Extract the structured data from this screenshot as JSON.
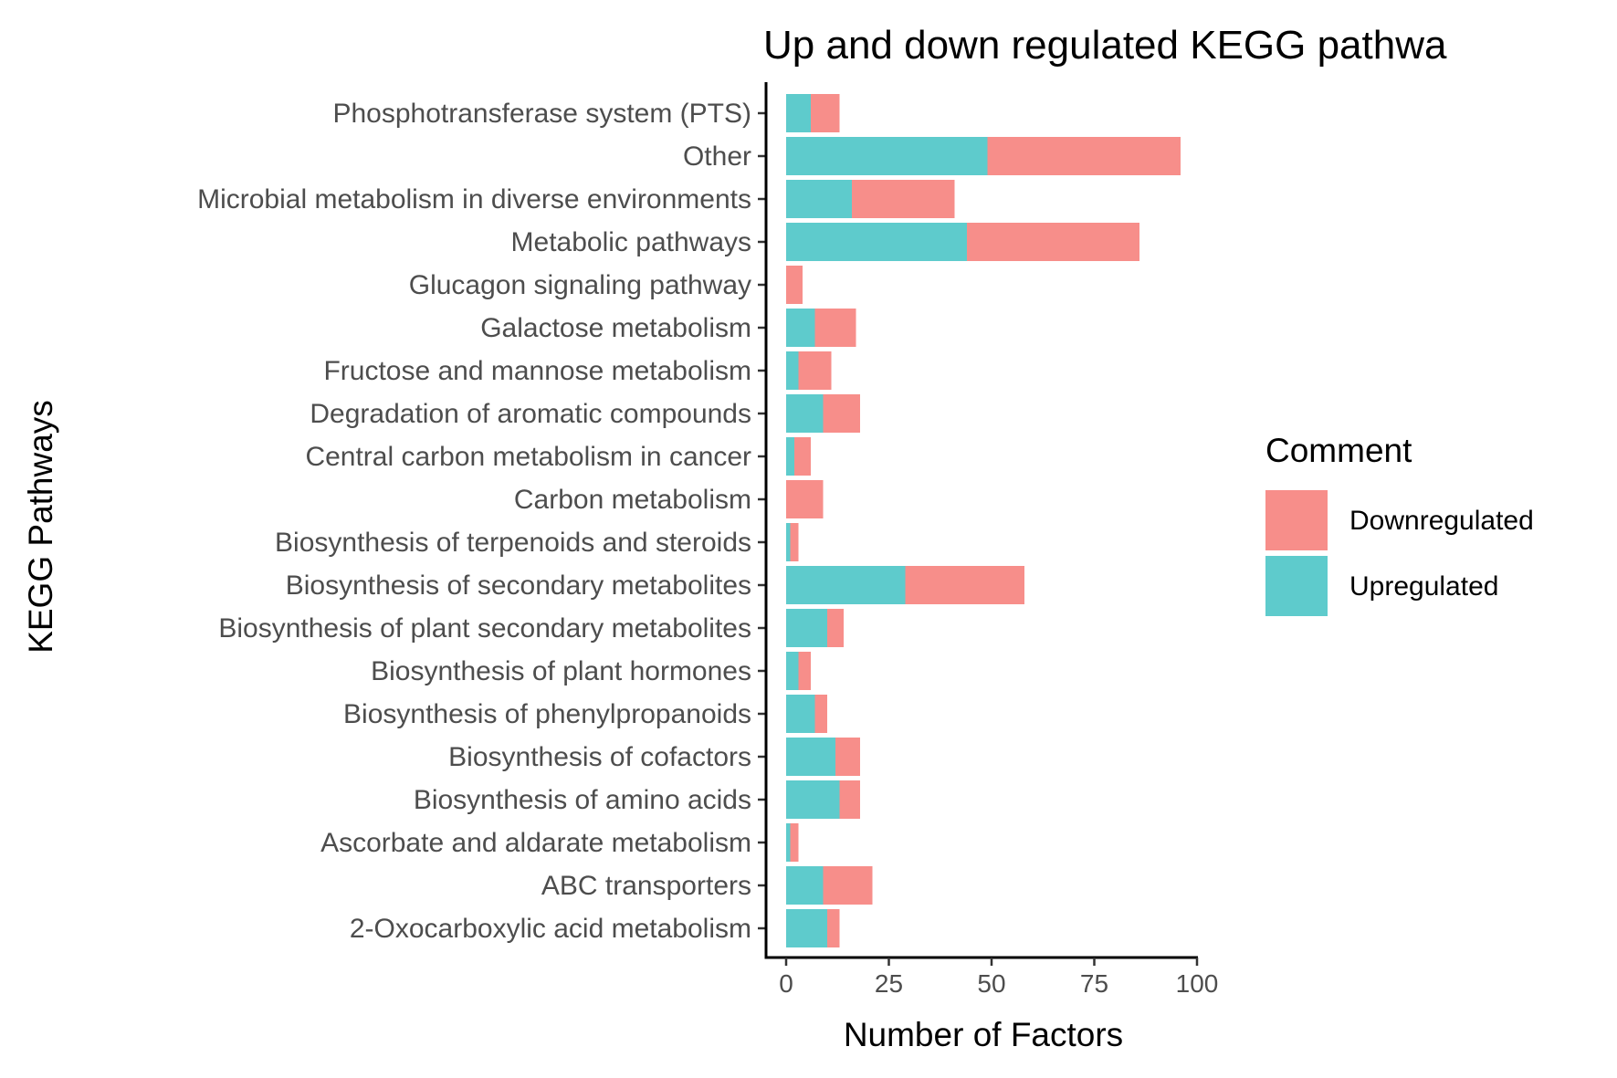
{
  "chart_data": {
    "type": "bar",
    "orientation": "horizontal",
    "stacked": true,
    "title": "Up and down regulated KEGG pathwa",
    "xlabel": "Number of Factors",
    "ylabel": "KEGG Pathways",
    "xlim": [
      0,
      100
    ],
    "xticks": [
      "0",
      "25",
      "50",
      "75",
      "100"
    ],
    "xtick_values": [
      0,
      25,
      50,
      75,
      100
    ],
    "grid": false,
    "legend_position": "right",
    "legend_title": "Comment",
    "categories": [
      "Phosphotransferase system (PTS)",
      "Other",
      "Microbial metabolism in diverse environments",
      "Metabolic pathways",
      "Glucagon signaling pathway",
      "Galactose metabolism",
      "Fructose and mannose metabolism",
      "Degradation of aromatic compounds",
      "Central carbon metabolism in cancer",
      "Carbon metabolism",
      "Biosynthesis of terpenoids and steroids",
      "Biosynthesis of secondary metabolites",
      "Biosynthesis of plant secondary metabolites",
      "Biosynthesis of plant hormones",
      "Biosynthesis of phenylpropanoids",
      "Biosynthesis of cofactors",
      "Biosynthesis of amino acids",
      "Ascorbate and aldarate metabolism",
      "ABC transporters",
      "2-Oxocarboxylic acid metabolism"
    ],
    "series": [
      {
        "name": "Upregulated",
        "color": "#5ECBCC",
        "values": [
          6,
          49,
          16,
          44,
          0,
          7,
          3,
          9,
          2,
          0,
          1,
          29,
          10,
          3,
          7,
          12,
          13,
          1,
          9,
          10
        ]
      },
      {
        "name": "Downregulated",
        "color": "#F78E8A",
        "values": [
          7,
          47,
          25,
          42,
          4,
          10,
          8,
          9,
          4,
          9,
          2,
          29,
          4,
          3,
          3,
          6,
          5,
          2,
          12,
          3
        ]
      }
    ],
    "legend": [
      {
        "name": "Downregulated",
        "color": "#F78E8A"
      },
      {
        "name": "Upregulated",
        "color": "#5ECBCC"
      }
    ]
  }
}
